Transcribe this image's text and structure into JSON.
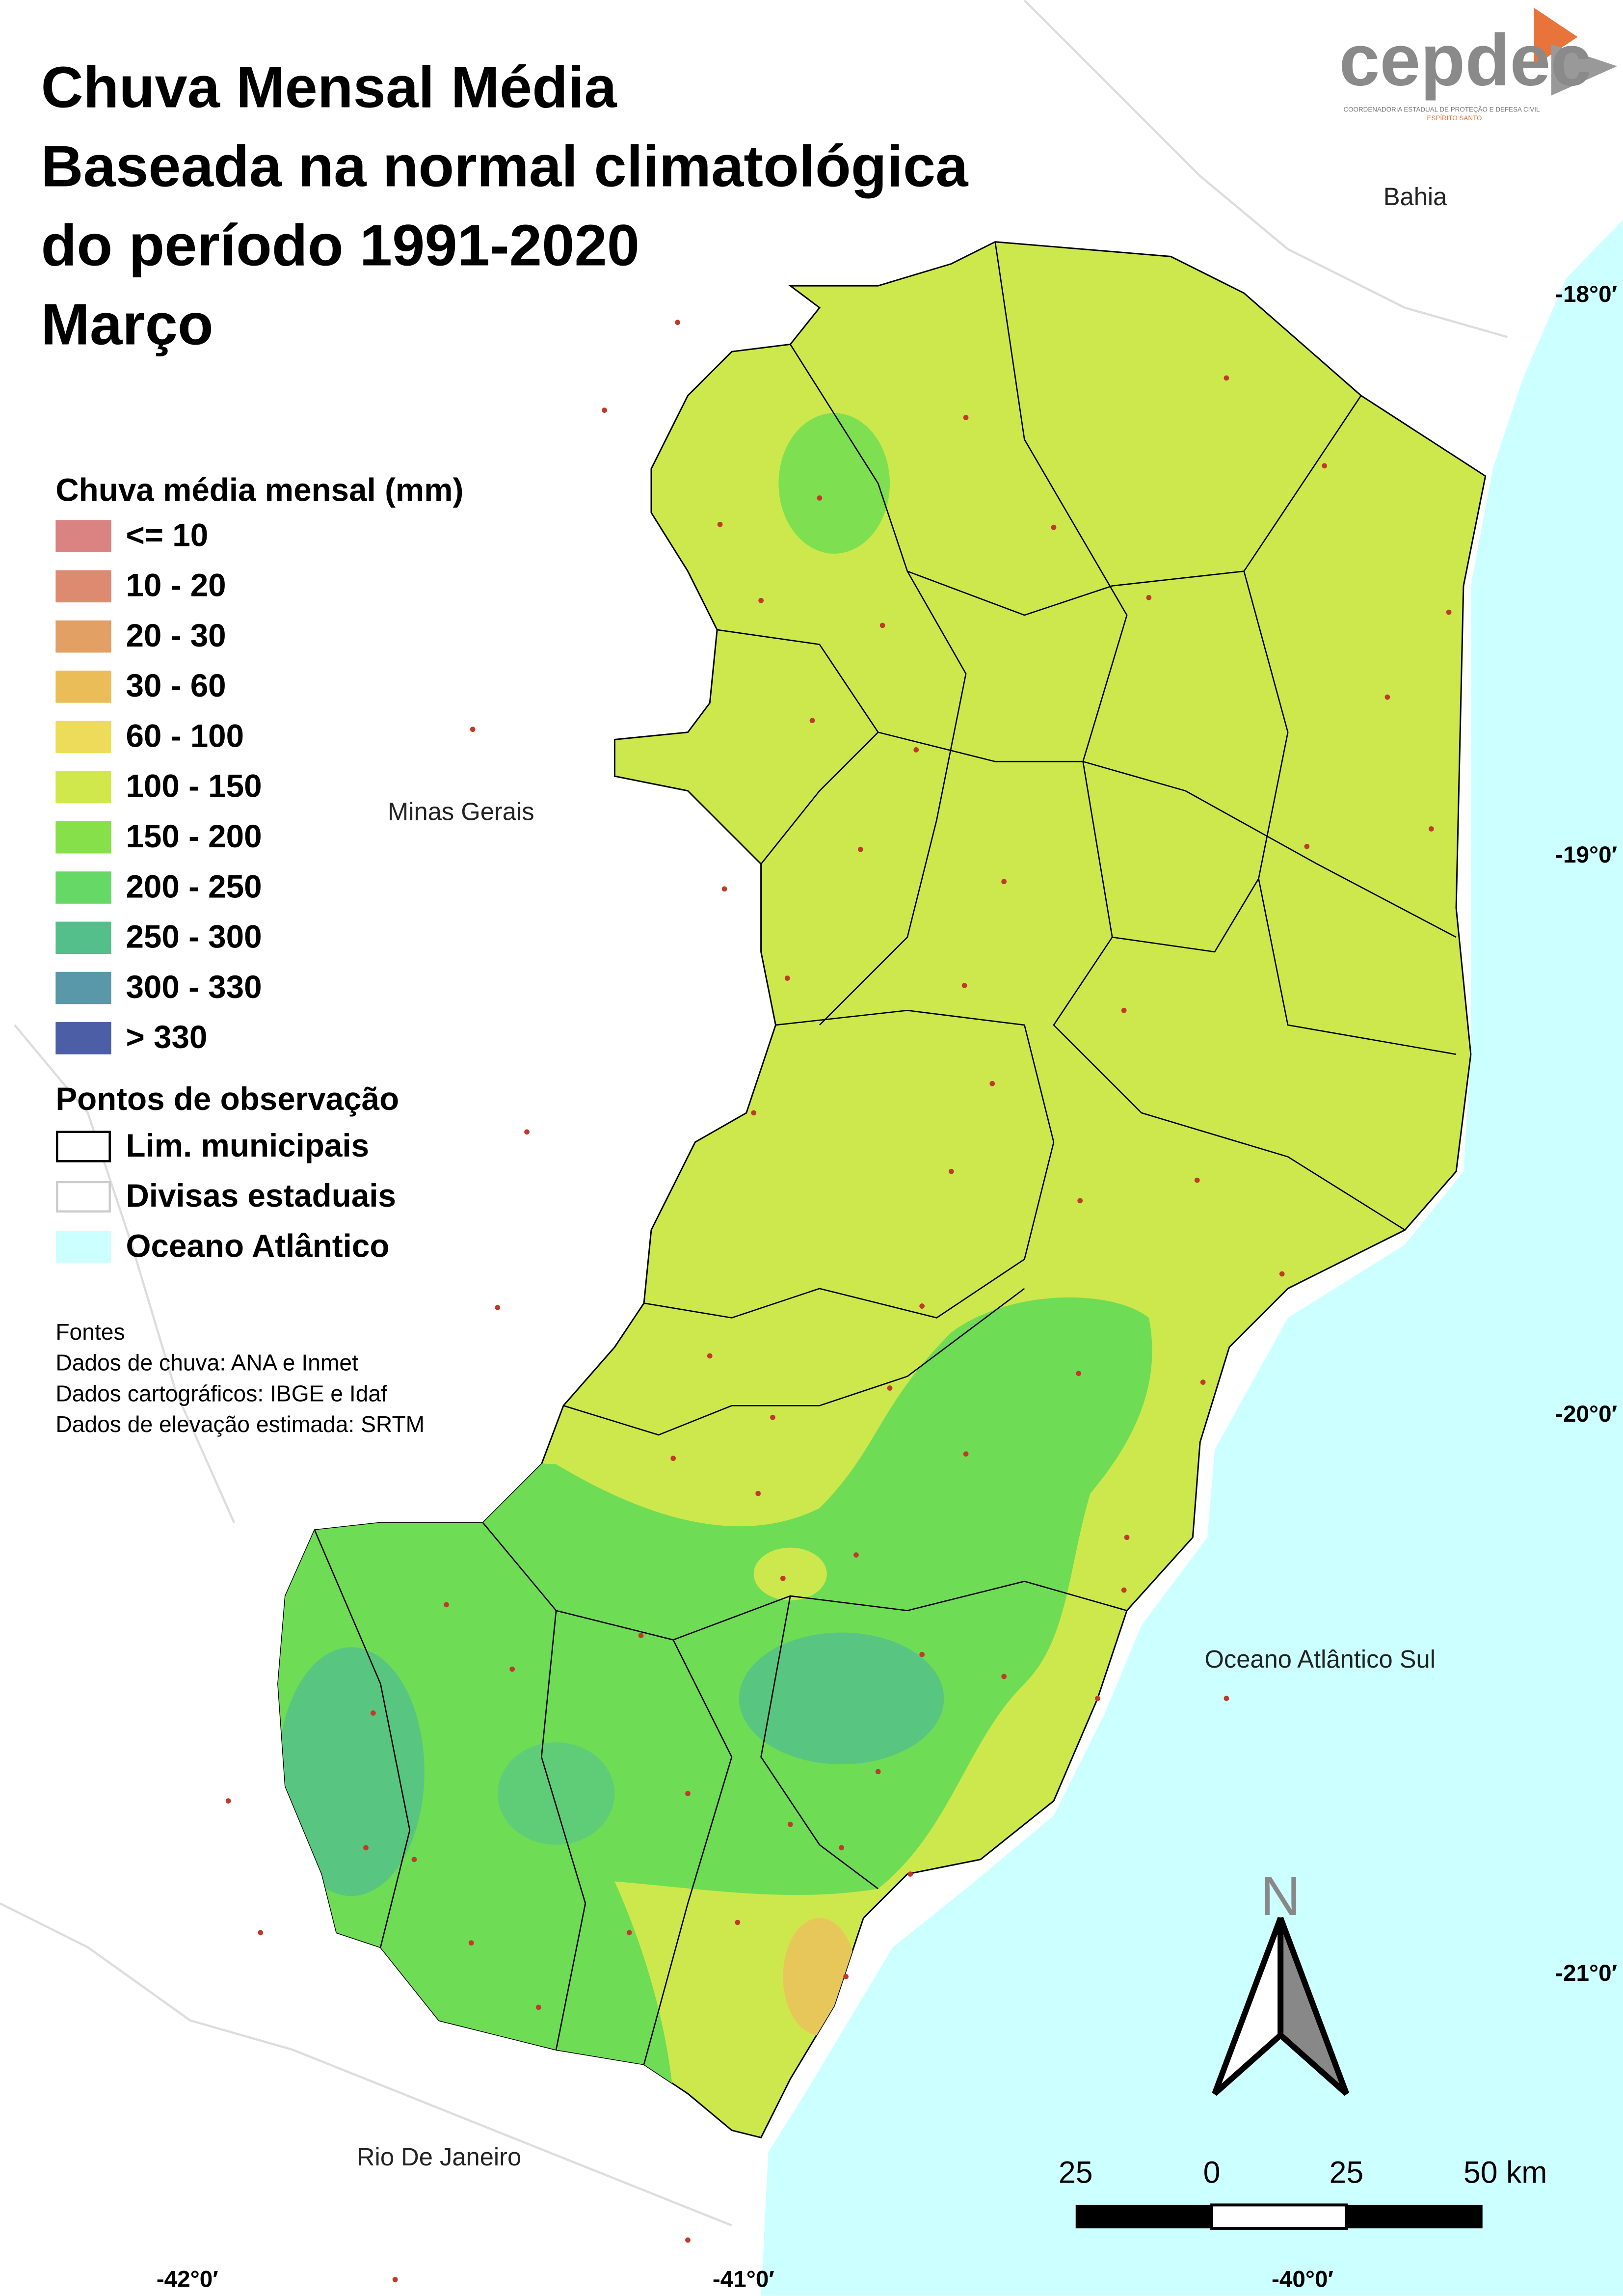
{
  "title": {
    "lines": [
      "Chuva Mensal Média",
      "Baseada na normal climatológica",
      "do período 1991-2020",
      "Março"
    ]
  },
  "logo": {
    "name": "cepdec",
    "subtitle": "COORDENADORIA ESTADUAL DE PROTEÇÃO E DEFESA CIVIL",
    "state": "ESPÍRITO SANTO"
  },
  "legend": {
    "title": "Chuva média mensal (mm)",
    "items": [
      {
        "label": "<= 10",
        "color": "#d98382"
      },
      {
        "label": "10 - 20",
        "color": "#dc8b70"
      },
      {
        "label": "20 - 30",
        "color": "#e2a064"
      },
      {
        "label": "30 - 60",
        "color": "#ebbd58"
      },
      {
        "label": "60 - 100",
        "color": "#eddc5a"
      },
      {
        "label": "100 - 150",
        "color": "#d0e84c"
      },
      {
        "label": "150 - 200",
        "color": "#86e04a"
      },
      {
        "label": "200 - 250",
        "color": "#66d866"
      },
      {
        "label": "250 - 300",
        "color": "#55bf8c"
      },
      {
        "label": "300 - 330",
        "color": "#5898a8"
      },
      {
        "label": "> 330",
        "color": "#4c5fa6"
      }
    ],
    "observation_title": "Pontos de observação",
    "layers": [
      {
        "label": "Lim. municipais",
        "fill": "#ffffff",
        "stroke": "#000000"
      },
      {
        "label": "Divisas estaduais",
        "fill": "#ffffff",
        "stroke": "#cccccc"
      },
      {
        "label": "Oceano Atlântico",
        "fill": "#ccffff",
        "stroke": "#ccffff"
      }
    ]
  },
  "sources": [
    "Fontes",
    "Dados de chuva: ANA e Inmet",
    "Dados cartográficos: IBGE e Idaf",
    "Dados de elevação estimada: SRTM"
  ],
  "places": [
    "Bahia",
    "Minas Gerais",
    "Oceano Atlântico Sul",
    "Rio De Janeiro"
  ],
  "latitudes": [
    "-18°0′",
    "-19°0′",
    "-20°0′",
    "-21°0′"
  ],
  "longitudes": [
    "-42°0′",
    "-41°0′",
    "-40°0′"
  ],
  "north": "N",
  "scale_bar": [
    "25",
    "0",
    "25",
    "50 km"
  ]
}
